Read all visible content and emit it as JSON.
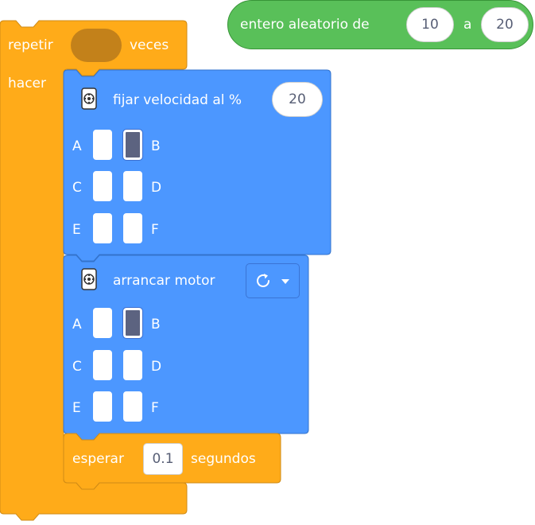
{
  "reporter": {
    "label": "entero aleatorio de",
    "from_value": "10",
    "joiner": "a",
    "to_value": "20"
  },
  "repeat_block": {
    "label": "repetir",
    "suffix": "veces",
    "do_label": "hacer"
  },
  "set_speed_block": {
    "label": "fijar velocidad al %",
    "value": "20",
    "ports": [
      {
        "name": "A",
        "selected": false
      },
      {
        "name": "B",
        "selected": true
      },
      {
        "name": "C",
        "selected": false
      },
      {
        "name": "D",
        "selected": false
      },
      {
        "name": "E",
        "selected": false
      },
      {
        "name": "F",
        "selected": false
      }
    ]
  },
  "start_motor_block": {
    "label": "arrancar motor",
    "direction_icon": "clockwise-arrow-icon",
    "ports": [
      {
        "name": "A",
        "selected": false
      },
      {
        "name": "B",
        "selected": true
      },
      {
        "name": "C",
        "selected": false
      },
      {
        "name": "D",
        "selected": false
      },
      {
        "name": "E",
        "selected": false
      },
      {
        "name": "F",
        "selected": false
      }
    ]
  },
  "wait_block": {
    "label": "esperar",
    "value": "0.1",
    "suffix": "segundos"
  },
  "colors": {
    "control": "#ffab19",
    "control_border": "#cf8b17",
    "motion": "#4c97ff",
    "motion_border": "#3373cc",
    "operator": "#59c059"
  }
}
